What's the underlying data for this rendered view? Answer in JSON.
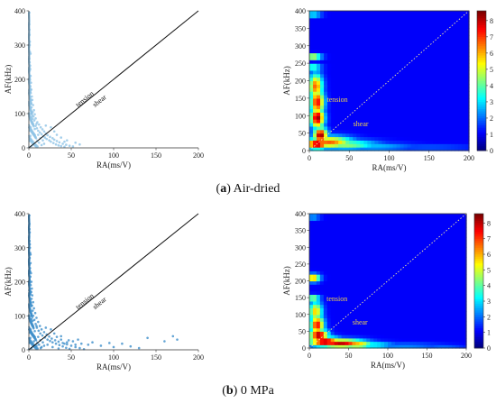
{
  "captions": [
    {
      "letter": "a",
      "text": " Air-dried"
    },
    {
      "letter": "b",
      "text": " 0 MPa"
    }
  ],
  "chart_data": [
    {
      "type": "scatter",
      "panel": "a-left",
      "xlabel": "RA(ms/V)",
      "ylabel": "AF(kHz)",
      "xlim": [
        0,
        200
      ],
      "ylim": [
        0,
        400
      ],
      "xticks": [
        "0",
        "50",
        "100",
        "150",
        "200"
      ],
      "yticks": [
        "0",
        "100",
        "200",
        "300",
        "400"
      ],
      "point_color": "#8fc3e6",
      "divider_line": {
        "from": [
          0,
          0
        ],
        "to": [
          200,
          400
        ]
      },
      "annotations": [
        "tension",
        "shear"
      ],
      "points": [
        [
          0.5,
          395
        ],
        [
          0.6,
          360
        ],
        [
          0.8,
          330
        ],
        [
          1.0,
          300
        ],
        [
          1.2,
          280
        ],
        [
          0.7,
          260
        ],
        [
          1.5,
          240
        ],
        [
          1.0,
          225
        ],
        [
          2.0,
          210
        ],
        [
          1.3,
          200
        ],
        [
          2.5,
          190
        ],
        [
          1.8,
          180
        ],
        [
          3.0,
          170
        ],
        [
          2.2,
          160
        ],
        [
          3.5,
          150
        ],
        [
          1.0,
          145
        ],
        [
          4.0,
          140
        ],
        [
          2.8,
          130
        ],
        [
          5.0,
          125
        ],
        [
          3.2,
          118
        ],
        [
          6.0,
          110
        ],
        [
          4.5,
          104
        ],
        [
          7.0,
          98
        ],
        [
          5.5,
          92
        ],
        [
          8.0,
          86
        ],
        [
          6.5,
          80
        ],
        [
          10.0,
          75
        ],
        [
          4.0,
          72
        ],
        [
          12.0,
          68
        ],
        [
          8.0,
          64
        ],
        [
          14.0,
          60
        ],
        [
          9.5,
          57
        ],
        [
          16.0,
          54
        ],
        [
          11.0,
          50
        ],
        [
          18.0,
          48
        ],
        [
          13.0,
          45
        ],
        [
          20.0,
          42
        ],
        [
          15.0,
          40
        ],
        [
          22.0,
          37
        ],
        [
          17.0,
          34
        ],
        [
          25.0,
          32
        ],
        [
          19.0,
          30
        ],
        [
          28.0,
          28
        ],
        [
          21.0,
          26
        ],
        [
          30.0,
          24
        ],
        [
          24.0,
          22
        ],
        [
          33.0,
          20
        ],
        [
          26.0,
          18
        ],
        [
          36.0,
          16
        ],
        [
          29.0,
          14
        ],
        [
          40.0,
          12
        ],
        [
          32.0,
          10
        ],
        [
          44.0,
          9
        ],
        [
          35.0,
          7
        ],
        [
          48.0,
          6
        ],
        [
          38.0,
          5
        ],
        [
          52.0,
          4
        ],
        [
          42.0,
          3
        ],
        [
          2.0,
          60
        ],
        [
          3.0,
          90
        ],
        [
          1.5,
          120
        ],
        [
          6.0,
          40
        ],
        [
          8.0,
          30
        ],
        [
          10.0,
          20
        ],
        [
          12.0,
          15
        ],
        [
          5.0,
          10
        ],
        [
          3.0,
          5
        ],
        [
          15.0,
          8
        ],
        [
          18.0,
          12
        ],
        [
          7.0,
          55
        ],
        [
          9.0,
          70
        ],
        [
          2.5,
          100
        ],
        [
          4.5,
          85
        ],
        [
          26.0,
          60
        ],
        [
          30.0,
          48
        ],
        [
          38.0,
          30
        ],
        [
          45.0,
          22
        ],
        [
          55.0,
          15
        ],
        [
          60.0,
          10
        ],
        [
          20.0,
          65
        ],
        [
          1.0,
          50
        ],
        [
          0.8,
          20
        ],
        [
          1.7,
          35
        ],
        [
          11.0,
          38
        ],
        [
          13.5,
          28
        ],
        [
          16.5,
          22
        ],
        [
          33.0,
          38
        ],
        [
          42.0,
          18
        ],
        [
          0.5,
          170
        ],
        [
          0.9,
          250
        ],
        [
          1.1,
          310
        ],
        [
          0.7,
          345
        ],
        [
          2.0,
          275
        ],
        [
          1.6,
          230
        ]
      ]
    },
    {
      "type": "heatmap",
      "panel": "a-right",
      "xlabel": "RA(ms/V)",
      "ylabel": "AF(kHz)",
      "xlim": [
        0,
        200
      ],
      "ylim": [
        0,
        400
      ],
      "xticks": [
        "0",
        "50",
        "100",
        "150",
        "200"
      ],
      "yticks": [
        "0",
        "50",
        "100",
        "150",
        "200",
        "250",
        "300",
        "350",
        "400"
      ],
      "colorbar_ticks": [
        "0",
        "1",
        "2",
        "3",
        "4",
        "5",
        "6",
        "7",
        "8"
      ],
      "color_range": [
        0,
        8.6
      ],
      "divider_line": {
        "from": [
          0,
          0
        ],
        "to": [
          200,
          400
        ],
        "style": "dotted"
      },
      "annotations": [
        "tension",
        "shear"
      ],
      "hotspots": [
        [
          5,
          390,
          7,
          3,
          8
        ],
        [
          5,
          270,
          7,
          5,
          6.5
        ],
        [
          5,
          240,
          7,
          5,
          4.5
        ],
        [
          8,
          185,
          6,
          25,
          6.5
        ],
        [
          10,
          140,
          6,
          25,
          7.5
        ],
        [
          10,
          95,
          6,
          20,
          8.5
        ],
        [
          14,
          45,
          6,
          15,
          8.6
        ],
        [
          10,
          20,
          10,
          10,
          8.6
        ],
        [
          25,
          25,
          20,
          12,
          6.5
        ],
        [
          45,
          18,
          28,
          10,
          4
        ],
        [
          80,
          12,
          35,
          8,
          2
        ],
        [
          150,
          10,
          40,
          6,
          1
        ]
      ]
    },
    {
      "type": "scatter",
      "panel": "b-left",
      "xlabel": "RA(ms/V)",
      "ylabel": "AF(kHz)",
      "xlim": [
        0,
        200
      ],
      "ylim": [
        0,
        400
      ],
      "xticks": [
        "0",
        "50",
        "100",
        "150",
        "200"
      ],
      "yticks": [
        "0",
        "100",
        "200",
        "300",
        "400"
      ],
      "point_color": "#3d8fcb",
      "divider_line": {
        "from": [
          0,
          0
        ],
        "to": [
          200,
          400
        ]
      },
      "annotations": [
        "tension",
        "shear"
      ],
      "points": [
        [
          0.5,
          395
        ],
        [
          0.7,
          370
        ],
        [
          1.0,
          345
        ],
        [
          0.8,
          320
        ],
        [
          1.2,
          300
        ],
        [
          1.5,
          285
        ],
        [
          1.0,
          270
        ],
        [
          2.0,
          255
        ],
        [
          1.4,
          240
        ],
        [
          2.5,
          225
        ],
        [
          1.8,
          215
        ],
        [
          3.0,
          200
        ],
        [
          2.2,
          190
        ],
        [
          3.5,
          180
        ],
        [
          2.8,
          170
        ],
        [
          4.0,
          160
        ],
        [
          3.2,
          150
        ],
        [
          5.0,
          140
        ],
        [
          3.8,
          130
        ],
        [
          6.0,
          122
        ],
        [
          4.5,
          115
        ],
        [
          7.5,
          108
        ],
        [
          5.2,
          100
        ],
        [
          9.0,
          94
        ],
        [
          6.5,
          88
        ],
        [
          11.0,
          82
        ],
        [
          8.0,
          76
        ],
        [
          13.0,
          70
        ],
        [
          9.5,
          65
        ],
        [
          15.0,
          60
        ],
        [
          11.5,
          56
        ],
        [
          18.0,
          52
        ],
        [
          13.5,
          48
        ],
        [
          21.0,
          45
        ],
        [
          16.0,
          42
        ],
        [
          24.0,
          39
        ],
        [
          19.0,
          36
        ],
        [
          27.0,
          33
        ],
        [
          22.0,
          30
        ],
        [
          31.0,
          28
        ],
        [
          25.0,
          26
        ],
        [
          35.0,
          24
        ],
        [
          28.0,
          22
        ],
        [
          40.0,
          20
        ],
        [
          32.0,
          18
        ],
        [
          45.0,
          16
        ],
        [
          36.0,
          14
        ],
        [
          50.0,
          12
        ],
        [
          40.0,
          10
        ],
        [
          55.0,
          8
        ],
        [
          44.0,
          6
        ],
        [
          60.0,
          5
        ],
        [
          48.0,
          3
        ],
        [
          65.0,
          2
        ],
        [
          52.0,
          25
        ],
        [
          58.0,
          30
        ],
        [
          70.0,
          15
        ],
        [
          75.0,
          22
        ],
        [
          85.0,
          12
        ],
        [
          95.0,
          20
        ],
        [
          110.0,
          18
        ],
        [
          120.0,
          10
        ],
        [
          140.0,
          35
        ],
        [
          160.0,
          25
        ],
        [
          170.0,
          40
        ],
        [
          175.0,
          30
        ],
        [
          130.0,
          5
        ],
        [
          100.0,
          8
        ],
        [
          2.0,
          60
        ],
        [
          3.0,
          90
        ],
        [
          1.5,
          120
        ],
        [
          6.0,
          40
        ],
        [
          8.0,
          30
        ],
        [
          10.0,
          20
        ],
        [
          12.0,
          15
        ],
        [
          5.0,
          10
        ],
        [
          3.0,
          5
        ],
        [
          15.0,
          8
        ],
        [
          18.0,
          12
        ],
        [
          7.0,
          55
        ],
        [
          9.0,
          70
        ],
        [
          2.5,
          100
        ],
        [
          4.5,
          85
        ],
        [
          26.0,
          60
        ],
        [
          30.0,
          48
        ],
        [
          38.0,
          30
        ],
        [
          45.0,
          22
        ],
        [
          55.0,
          15
        ],
        [
          20.0,
          65
        ],
        [
          1.0,
          50
        ],
        [
          0.8,
          20
        ],
        [
          1.7,
          35
        ],
        [
          11.0,
          38
        ],
        [
          13.5,
          28
        ],
        [
          16.5,
          22
        ],
        [
          33.0,
          38
        ],
        [
          42.0,
          18
        ],
        [
          0.5,
          175
        ],
        [
          0.9,
          250
        ],
        [
          1.1,
          310
        ],
        [
          0.7,
          355
        ],
        [
          2.0,
          280
        ],
        [
          1.6,
          230
        ],
        [
          4.0,
          45
        ],
        [
          6.0,
          25
        ],
        [
          9.0,
          12
        ],
        [
          14.0,
          5
        ],
        [
          22.0,
          15
        ],
        [
          28.0,
          8
        ],
        [
          35.0,
          4
        ],
        [
          47.0,
          28
        ],
        [
          62.0,
          18
        ],
        [
          38.0,
          40
        ]
      ]
    },
    {
      "type": "heatmap",
      "panel": "b-right",
      "xlabel": "RA(ms/V)",
      "ylabel": "AF(kHz)",
      "xlim": [
        0,
        200
      ],
      "ylim": [
        0,
        400
      ],
      "xticks": [
        "0",
        "50",
        "100",
        "150",
        "200"
      ],
      "yticks": [
        "0",
        "50",
        "100",
        "150",
        "200",
        "250",
        "300",
        "350",
        "400"
      ],
      "colorbar_ticks": [
        "0",
        "1",
        "2",
        "3",
        "4",
        "5",
        "6",
        "7",
        "8"
      ],
      "color_range": [
        0,
        8.6
      ],
      "divider_line": {
        "from": [
          0,
          0
        ],
        "to": [
          200,
          400
        ],
        "style": "dotted"
      },
      "annotations": [
        "tension",
        "shear"
      ],
      "hotspots": [
        [
          5,
          390,
          6,
          4,
          3
        ],
        [
          5,
          210,
          6,
          8,
          6.5
        ],
        [
          5,
          150,
          6,
          6,
          5
        ],
        [
          8,
          110,
          6,
          20,
          5.5
        ],
        [
          10,
          70,
          6,
          20,
          7.5
        ],
        [
          12,
          40,
          8,
          12,
          8.6
        ],
        [
          20,
          20,
          14,
          10,
          8.6
        ],
        [
          40,
          15,
          22,
          9,
          8
        ],
        [
          60,
          12,
          15,
          8,
          6
        ],
        [
          80,
          10,
          20,
          7,
          3
        ],
        [
          120,
          8,
          35,
          6,
          1.5
        ],
        [
          170,
          6,
          20,
          5,
          1
        ]
      ]
    }
  ]
}
